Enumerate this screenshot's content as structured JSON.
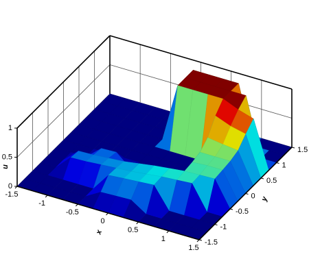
{
  "chart_data": {
    "type": "surface",
    "xlabel": "x",
    "ylabel": "y",
    "zlabel": "u",
    "colormap": "jet",
    "x": [
      -1.5,
      -1.25,
      -1,
      -0.75,
      -0.5,
      -0.25,
      0,
      0.25,
      0.5,
      0.75,
      1,
      1.25,
      1.5
    ],
    "y": [
      -1.5,
      -1.25,
      -1,
      -0.75,
      -0.5,
      -0.25,
      0,
      0.25,
      0.5,
      0.75,
      1,
      1.25,
      1.5
    ],
    "z": [
      [
        0,
        0,
        0,
        0,
        0,
        0,
        0,
        0,
        0,
        0,
        0,
        0,
        0
      ],
      [
        0,
        0,
        0,
        0,
        0,
        0.15,
        0.16,
        0.17,
        0,
        0,
        0,
        0,
        0
      ],
      [
        0,
        0,
        0,
        0,
        0,
        0.31,
        0.33,
        0.35,
        0.37,
        0,
        0,
        0,
        0
      ],
      [
        0,
        0,
        0.25,
        0.26,
        0.28,
        0.3,
        0.32,
        0.35,
        0.38,
        0.4,
        0.42,
        0,
        0
      ],
      [
        0,
        0,
        0.23,
        0.24,
        0.26,
        0.28,
        0.32,
        0.36,
        0.39,
        0.42,
        0.43,
        0.44,
        0
      ],
      [
        0,
        0,
        0,
        0.22,
        0.23,
        0,
        0,
        0,
        0,
        0.44,
        0.46,
        0.46,
        0
      ],
      [
        0,
        0,
        0,
        0,
        0,
        0,
        0,
        0,
        0,
        0.48,
        0.48,
        0.48,
        0
      ],
      [
        0,
        0,
        0,
        0,
        0,
        0,
        0,
        0,
        0,
        0.6,
        0.56,
        0.53,
        0
      ],
      [
        0,
        0,
        0,
        0,
        0,
        0,
        0,
        0,
        0,
        0.84,
        0.74,
        0.68,
        0
      ],
      [
        0,
        0,
        0,
        0,
        0,
        0,
        1,
        1,
        1,
        1,
        0.89,
        0.81,
        0
      ],
      [
        0,
        0,
        0,
        0,
        0,
        0,
        1,
        1,
        1,
        1,
        1,
        0,
        0
      ],
      [
        0,
        0,
        0,
        0,
        0,
        0,
        1,
        1,
        1,
        1,
        0,
        0,
        0
      ],
      [
        0,
        0,
        0,
        0,
        0,
        0,
        0,
        0,
        0,
        0,
        0,
        0,
        0
      ]
    ],
    "xlim": [
      -1.5,
      1.5
    ],
    "ylim": [
      -1.5,
      1.5
    ],
    "zlim": [
      0,
      1
    ],
    "xticks": [
      -1.5,
      -1,
      -0.5,
      0,
      0.5,
      1,
      1.5
    ],
    "yticks": [
      -1.5,
      -1,
      -0.5,
      0,
      0.5,
      1,
      1.5
    ],
    "zticks": [
      0,
      0.5,
      1
    ],
    "grid": true
  }
}
